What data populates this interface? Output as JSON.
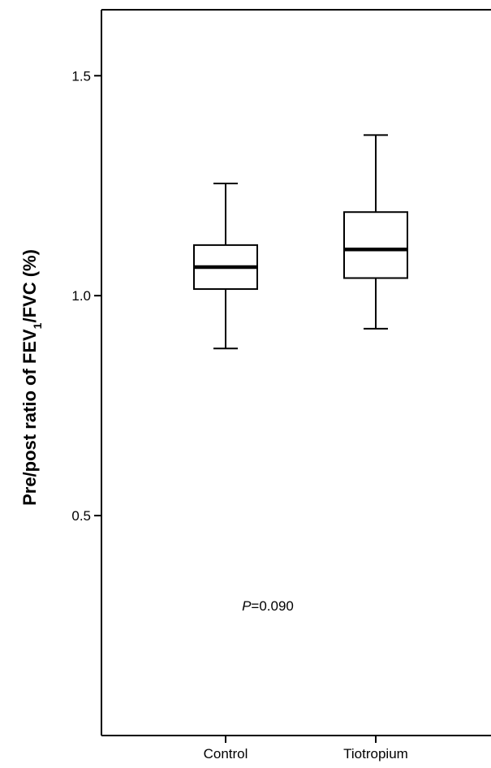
{
  "chart_data": {
    "type": "box",
    "categories": [
      "Control",
      "Tiotropium"
    ],
    "boxes": [
      {
        "name": "Control",
        "min": 0.88,
        "q1": 1.015,
        "median": 1.065,
        "q3": 1.115,
        "max": 1.255
      },
      {
        "name": "Tiotropium",
        "min": 0.925,
        "q1": 1.04,
        "median": 1.105,
        "q3": 1.19,
        "max": 1.365
      }
    ],
    "ylabel": {
      "prefix": "Pre/post ratio of FEV",
      "subscript": "1",
      "suffix": "/FVC (%)"
    },
    "xlabel": "",
    "yticks": [
      0.5,
      1.0,
      1.5
    ],
    "ytick_labels": [
      "0.5",
      "1.0",
      "1.5"
    ],
    "ylim": [
      0.0,
      1.65
    ],
    "grid": false,
    "annotation": {
      "italic": "P",
      "text": "=0.090"
    }
  }
}
